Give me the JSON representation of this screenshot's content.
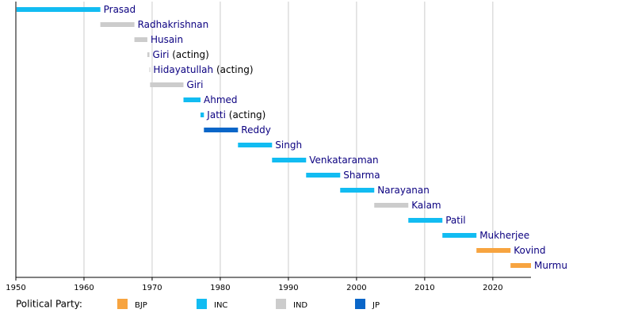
{
  "chart_data": {
    "type": "timeline",
    "categories": [
      "Prasad",
      "Radhakrishnan",
      "Husain",
      "Giri",
      "Hidayatullah",
      "Giri",
      "Ahmed",
      "Jatti",
      "Reddy",
      "Singh",
      "Venkataraman",
      "Sharma",
      "Narayanan",
      "Kalam",
      "Patil",
      "Mukherjee",
      "Kovind",
      "Murmu"
    ],
    "notes": [
      null,
      null,
      null,
      "(acting)",
      "(acting)",
      null,
      null,
      "(acting)",
      null,
      null,
      null,
      null,
      null,
      null,
      null,
      null,
      null,
      null
    ],
    "start": [
      1950.1,
      1962.4,
      1967.4,
      1969.3,
      1969.6,
      1969.7,
      1974.6,
      1977.1,
      1977.6,
      1982.6,
      1987.6,
      1992.6,
      1997.6,
      2002.6,
      2007.6,
      2012.6,
      2017.6,
      2022.6
    ],
    "end": [
      1962.4,
      1967.4,
      1969.3,
      1969.6,
      1969.7,
      1974.6,
      1977.1,
      1977.6,
      1982.6,
      1987.6,
      1992.6,
      1997.6,
      2002.6,
      2007.6,
      2012.6,
      2017.6,
      2022.6,
      2025.6
    ],
    "party": [
      1,
      2,
      2,
      2,
      2,
      2,
      1,
      1,
      3,
      1,
      1,
      1,
      1,
      2,
      1,
      1,
      0,
      0
    ],
    "legend_title": "Political Party:",
    "series": [
      {
        "name": "BJP",
        "color": "#f7a440"
      },
      {
        "name": "INC",
        "color": "#12bcf2"
      },
      {
        "name": "IND",
        "color": "#cccccc"
      },
      {
        "name": "JP",
        "color": "#0a66c8"
      }
    ],
    "xlim": [
      1950,
      2025.6
    ],
    "xticks": [
      1950,
      1960,
      1970,
      1980,
      1990,
      2000,
      2010,
      2020
    ],
    "grid": true
  }
}
